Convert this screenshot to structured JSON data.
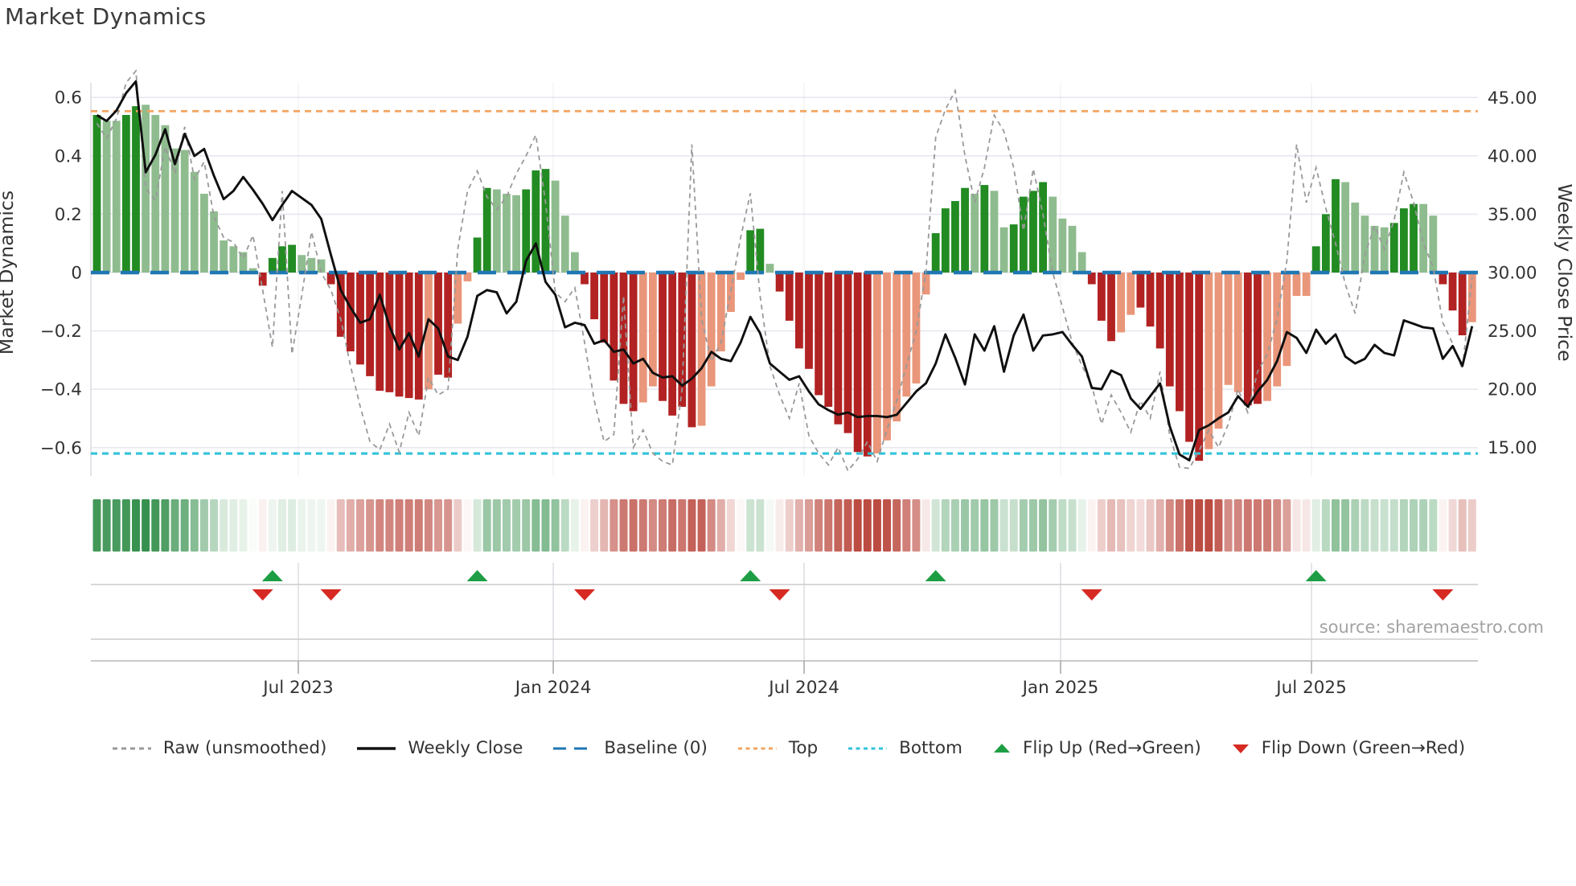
{
  "title": "Market Dynamics",
  "source": "source: sharemaestro.com",
  "axes": {
    "left": {
      "label": "Market Dynamics",
      "ticks": [
        {
          "v": 0.6,
          "label": "0.6"
        },
        {
          "v": 0.4,
          "label": "0.4"
        },
        {
          "v": 0.2,
          "label": "0.2"
        },
        {
          "v": 0.0,
          "label": "0"
        },
        {
          "v": -0.2,
          "label": "−0.2"
        },
        {
          "v": -0.4,
          "label": "−0.4"
        },
        {
          "v": -0.6,
          "label": "−0.6"
        }
      ]
    },
    "right": {
      "label": "Weekly Close Price",
      "ticks": [
        {
          "p": 45,
          "label": "45.00"
        },
        {
          "p": 40,
          "label": "40.00"
        },
        {
          "p": 35,
          "label": "35.00"
        },
        {
          "p": 30,
          "label": "30.00"
        },
        {
          "p": 25,
          "label": "25.00"
        },
        {
          "p": 20,
          "label": "20.00"
        },
        {
          "p": 15,
          "label": "15.00"
        }
      ]
    },
    "x": {
      "ticks": [
        {
          "label": "Jul 2023",
          "week": 20.65
        },
        {
          "label": "Jan 2024",
          "week": 46.79
        },
        {
          "label": "Jul 2024",
          "week": 72.51
        },
        {
          "label": "Jan 2025",
          "week": 98.8
        },
        {
          "label": "Jul 2025",
          "week": 124.53
        }
      ]
    }
  },
  "legend": {
    "items": [
      {
        "id": "raw",
        "label": "Raw (unsmoothed)",
        "type": "dash",
        "color": "#999999"
      },
      {
        "id": "close",
        "label": "Weekly Close",
        "type": "solid",
        "color": "#111111"
      },
      {
        "id": "baseline",
        "label": "Baseline (0)",
        "type": "longdash",
        "color": "#1f77b4"
      },
      {
        "id": "top",
        "label": "Top",
        "type": "dot",
        "color": "#f4a460"
      },
      {
        "id": "bottom",
        "label": "Bottom",
        "type": "dot",
        "color": "#30c3da"
      },
      {
        "id": "flip-up",
        "label": "Flip Up (Red→Green)",
        "type": "tri-up",
        "color": "#1e9e44"
      },
      {
        "id": "flip-down",
        "label": "Flip Down (Green→Red)",
        "type": "tri-down",
        "color": "#d62a23"
      }
    ]
  },
  "colors": {
    "bar_pos_dark": "#228B22",
    "bar_pos_light": "#8FBC8F",
    "bar_neg_dark": "#B22222",
    "bar_neg_light": "#E9967A",
    "close_line": "#0f0f0f",
    "raw_line": "#999999",
    "baseline": "#1f77b4",
    "top_line": "#f4a460",
    "bottom_line": "#30c3da",
    "grid": "#e7e7ef",
    "vgrid": "rgba(0,0,0,0.05)",
    "marker_up": "#1e9e44",
    "marker_down": "#d62a23",
    "heat_green_full": "#2e8c46",
    "heat_red_full": "#bc4c42"
  },
  "chart_data": {
    "type": "combo",
    "description": "Weekly momentum bars (left axis), weekly close and raw price lines (right axis), heatmap strip of bar values, and flip markers",
    "n_weeks": 142,
    "left_range": [
      -0.66,
      0.66
    ],
    "right_range": [
      15,
      47.5
    ],
    "reference_lines": {
      "baseline": 0,
      "top": 0.553,
      "bottom": -0.62
    },
    "grid": true,
    "legend_position": "bottom",
    "bar_values": [
      0.54,
      0.52,
      0.52,
      0.54,
      0.57,
      0.575,
      0.54,
      0.505,
      0.425,
      0.42,
      0.345,
      0.27,
      0.21,
      0.11,
      0.09,
      0.07,
      0.015,
      -0.045,
      0.05,
      0.09,
      0.095,
      0.06,
      0.05,
      0.045,
      -0.04,
      -0.22,
      -0.27,
      -0.315,
      -0.355,
      -0.405,
      -0.41,
      -0.425,
      -0.43,
      -0.435,
      -0.4,
      -0.35,
      -0.36,
      -0.175,
      -0.03,
      0.12,
      0.29,
      0.285,
      0.27,
      0.265,
      0.285,
      0.35,
      0.355,
      0.315,
      0.195,
      0.07,
      -0.04,
      -0.16,
      -0.24,
      -0.37,
      -0.45,
      -0.475,
      -0.445,
      -0.39,
      -0.44,
      -0.49,
      -0.46,
      -0.53,
      -0.525,
      -0.39,
      -0.27,
      -0.135,
      -0.025,
      0.145,
      0.15,
      0.03,
      -0.065,
      -0.165,
      -0.26,
      -0.33,
      -0.42,
      -0.46,
      -0.52,
      -0.55,
      -0.615,
      -0.63,
      -0.62,
      -0.575,
      -0.51,
      -0.425,
      -0.38,
      -0.075,
      0.135,
      0.22,
      0.245,
      0.29,
      0.27,
      0.3,
      0.28,
      0.155,
      0.165,
      0.26,
      0.28,
      0.31,
      0.26,
      0.185,
      0.16,
      0.07,
      -0.04,
      -0.165,
      -0.235,
      -0.205,
      -0.145,
      -0.12,
      -0.185,
      -0.26,
      -0.39,
      -0.475,
      -0.58,
      -0.645,
      -0.605,
      -0.535,
      -0.385,
      -0.41,
      -0.455,
      -0.45,
      -0.44,
      -0.39,
      -0.32,
      -0.08,
      -0.08,
      0.09,
      0.2,
      0.32,
      0.31,
      0.24,
      0.195,
      0.16,
      0.155,
      0.17,
      0.22,
      0.235,
      0.235,
      0.195,
      -0.04,
      -0.13,
      -0.215,
      -0.17
    ],
    "bar_shades": "DLLDDLLLLLLLLLLLLDDDDLLLDDDDDDDDDDSDDSSDDLLLDDDLLLDDDDDDSSDDDDSSSSSDDLDDDDDDDDDDSSSSSSDDDDLDLLDDDDLLLLDDDSSDDDDDDDSSSSDDSSSSSDDDLLLLLDDDLLDDDS",
    "close": [
      43.5,
      43.0,
      43.9,
      45.4,
      46.4,
      38.6,
      40.1,
      42.3,
      39.3,
      41.9,
      40.0,
      40.6,
      38.3,
      36.3,
      37.0,
      38.2,
      37.1,
      35.9,
      34.5,
      35.8,
      37.0,
      36.4,
      35.8,
      34.6,
      31.5,
      28.5,
      27.0,
      25.7,
      26.0,
      28.1,
      25.4,
      23.4,
      24.8,
      22.8,
      26.0,
      25.2,
      22.8,
      22.5,
      24.5,
      28.0,
      28.5,
      28.3,
      26.5,
      27.5,
      31.0,
      32.5,
      29.2,
      28.1,
      25.3,
      25.7,
      25.5,
      23.9,
      24.2,
      23.2,
      23.4,
      22.2,
      22.6,
      21.4,
      21.0,
      21.1,
      20.3,
      20.9,
      21.8,
      23.2,
      22.6,
      22.4,
      24.0,
      26.2,
      24.8,
      22.2,
      21.5,
      20.8,
      21.1,
      19.8,
      18.7,
      18.2,
      17.8,
      18.0,
      17.6,
      17.7,
      17.7,
      17.6,
      17.8,
      18.8,
      19.8,
      20.5,
      22.2,
      24.7,
      22.7,
      20.4,
      24.7,
      23.3,
      25.4,
      21.5,
      24.6,
      26.4,
      23.3,
      24.6,
      24.7,
      24.9,
      23.8,
      22.8,
      20.1,
      20.0,
      21.6,
      21.2,
      19.2,
      18.3,
      19.4,
      20.5,
      16.8,
      14.4,
      13.9,
      16.5,
      16.9,
      17.5,
      18.0,
      19.4,
      18.5,
      19.8,
      20.8,
      22.4,
      24.9,
      24.4,
      23.1,
      25.1,
      23.9,
      24.7,
      22.8,
      22.2,
      22.6,
      23.8,
      23.1,
      22.9,
      25.9,
      25.6,
      25.3,
      25.2,
      22.6,
      23.7,
      22.0,
      25.4
    ],
    "raw": [
      42.8,
      41.5,
      43.2,
      46.3,
      47.3,
      37.2,
      36.2,
      40.8,
      38.5,
      42.5,
      38.0,
      39.5,
      34.8,
      33.0,
      32.6,
      31.2,
      33.2,
      28.5,
      23.6,
      37.0,
      23.0,
      28.0,
      33.5,
      30.0,
      28.5,
      26.0,
      22.0,
      18.5,
      15.5,
      14.8,
      17.0,
      14.6,
      18.0,
      16.0,
      21.0,
      19.5,
      20.0,
      32.0,
      37.0,
      38.7,
      36.5,
      35.4,
      36.5,
      38.5,
      40.0,
      41.8,
      36.0,
      28.3,
      27.5,
      28.7,
      24.0,
      19.0,
      15.5,
      16.1,
      28.0,
      15.0,
      16.5,
      14.5,
      13.8,
      13.5,
      20.0,
      41.0,
      26.0,
      22.4,
      24.0,
      28.5,
      33.0,
      36.8,
      28.0,
      22.0,
      19.5,
      17.5,
      20.5,
      16.0,
      14.5,
      13.5,
      15.0,
      13.0,
      14.0,
      15.5,
      13.8,
      16.5,
      19.0,
      22.0,
      25.0,
      30.0,
      41.6,
      44.0,
      45.6,
      40.0,
      36.0,
      39.0,
      43.5,
      42.1,
      39.0,
      33.6,
      38.9,
      35.0,
      30.0,
      27.0,
      24.0,
      22.0,
      20.3,
      17.0,
      19.5,
      18.0,
      16.3,
      19.0,
      17.5,
      21.5,
      16.0,
      13.3,
      13.2,
      14.7,
      16.5,
      15.0,
      17.0,
      20.0,
      18.0,
      21.5,
      23.0,
      26.0,
      31.0,
      41.0,
      36.0,
      39.0,
      35.5,
      32.5,
      29.0,
      26.5,
      31.5,
      34.0,
      32.0,
      34.5,
      38.6,
      36.0,
      32.5,
      30.5,
      25.7,
      23.9,
      21.7,
      29.6
    ],
    "flip_up_weeks": [
      18,
      39,
      67,
      86,
      125
    ],
    "flip_down_weeks": [
      17,
      24,
      50,
      70,
      102,
      138
    ],
    "heatmap": {
      "derived_from": "bar_values",
      "rows": 1
    }
  }
}
